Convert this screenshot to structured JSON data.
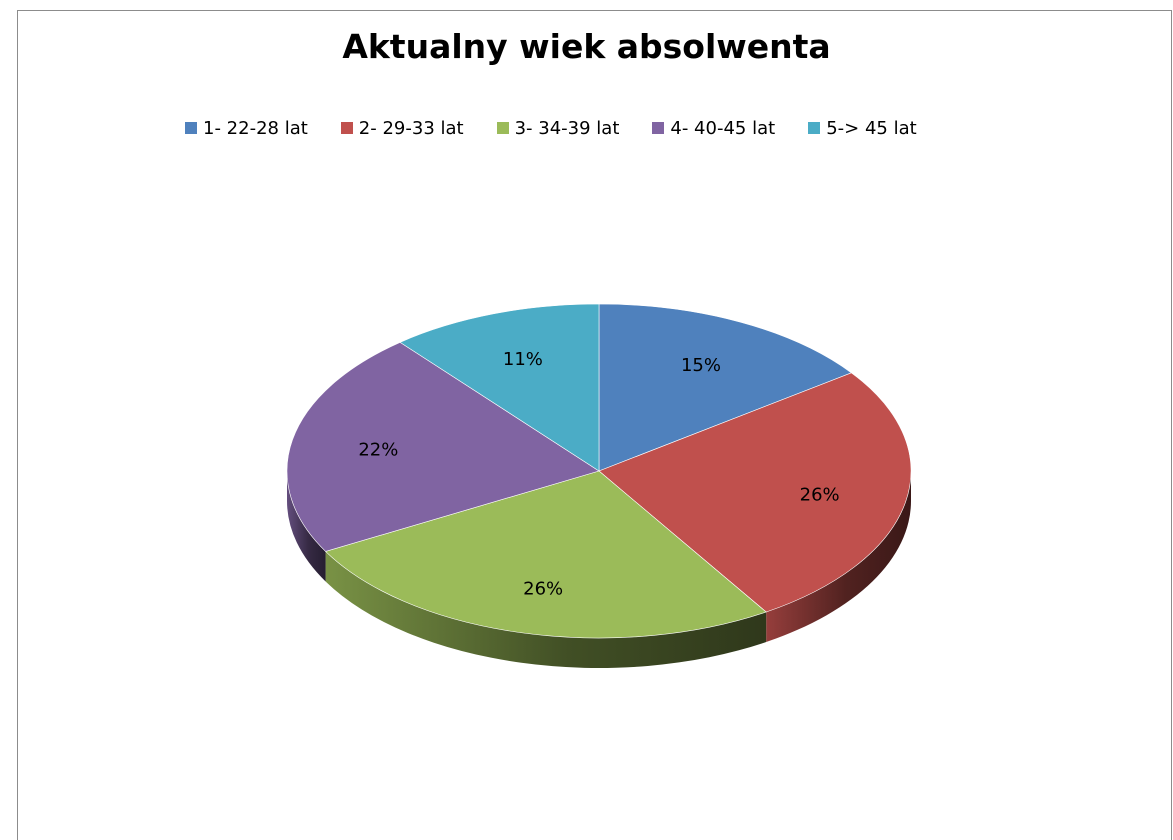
{
  "chart_data": {
    "type": "pie",
    "title": "Aktualny wiek absolwenta",
    "categories": [
      "1- 22-28 lat",
      "2- 29-33 lat",
      "3- 34-39 lat",
      "4- 40-45 lat",
      "5-> 45 lat"
    ],
    "values": [
      15,
      26,
      26,
      22,
      11
    ],
    "data_labels": [
      "15%",
      "26%",
      "26%",
      "22%",
      "11%"
    ],
    "colors": [
      "#4f81bd",
      "#c0504d",
      "#9bbb59",
      "#8064a2",
      "#4bacc6"
    ],
    "legend_position": "top",
    "style": "3d"
  }
}
